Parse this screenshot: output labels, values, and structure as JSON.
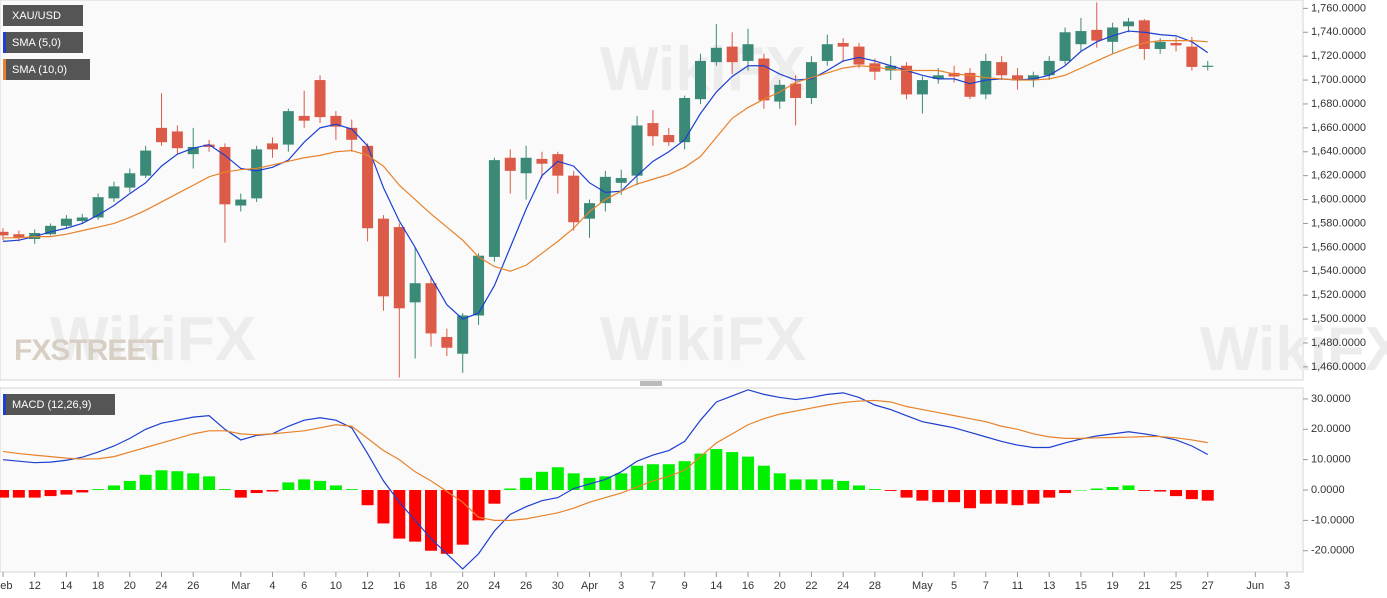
{
  "chart_data": [
    {
      "type": "candlestick",
      "ylim": [
        1449,
        1767
      ],
      "yticks": [
        {
          "value": 1460,
          "label": "1,460.0000"
        },
        {
          "value": 1480,
          "label": "1,480.0000"
        },
        {
          "value": 1500,
          "label": "1,500.0000"
        },
        {
          "value": 1520,
          "label": "1,520.0000"
        },
        {
          "value": 1540,
          "label": "1,540.0000"
        },
        {
          "value": 1560,
          "label": "1,560.0000"
        },
        {
          "value": 1580,
          "label": "1,580.0000"
        },
        {
          "value": 1600,
          "label": "1,600.0000"
        },
        {
          "value": 1620,
          "label": "1,620.0000"
        },
        {
          "value": 1640,
          "label": "1,640.0000"
        },
        {
          "value": 1660,
          "label": "1,660.0000"
        },
        {
          "value": 1680,
          "label": "1,680.0000"
        },
        {
          "value": 1700,
          "label": "1,700.0000"
        },
        {
          "value": 1720,
          "label": "1,720.0000"
        },
        {
          "value": 1740,
          "label": "1,740.0000"
        },
        {
          "value": 1760,
          "label": "1,760.0000"
        }
      ],
      "up_color": "#3b8a78",
      "down_color": "#dc5b48",
      "series": [
        {
          "name": "XAU/USD",
          "open": [
            1573,
            1571,
            1567,
            1571,
            1578,
            1582,
            1585,
            1601,
            1610,
            1620,
            1660,
            1657,
            1638,
            1646,
            1644,
            1595,
            1601,
            1647,
            1646,
            1670,
            1700,
            1670,
            1660,
            1645,
            1584,
            1577,
            1514,
            1530,
            1485,
            1471,
            1503,
            1552,
            1635,
            1622,
            1634,
            1638,
            1620,
            1584,
            1597,
            1614,
            1620,
            1664,
            1654,
            1648,
            1684,
            1715,
            1728,
            1716,
            1718,
            1682,
            1697,
            1685,
            1716,
            1731,
            1728,
            1714,
            1708,
            1712,
            1688,
            1701,
            1706,
            1706,
            1688,
            1715,
            1704,
            1700,
            1704,
            1716,
            1730,
            1742,
            1732,
            1745,
            1750,
            1726,
            1731,
            1728,
            1711,
            null,
            null,
            null,
            null,
            null
          ],
          "high": [
            1576,
            1574,
            1575,
            1580,
            1587,
            1588,
            1605,
            1615,
            1626,
            1645,
            1689,
            1662,
            1660,
            1650,
            1647,
            1605,
            1645,
            1652,
            1676,
            1691,
            1704,
            1674,
            1667,
            1647,
            1587,
            1580,
            1560,
            1536,
            1492,
            1505,
            1555,
            1635,
            1642,
            1645,
            1640,
            1640,
            1624,
            1600,
            1624,
            1625,
            1670,
            1675,
            1660,
            1687,
            1722,
            1747,
            1740,
            1743,
            1722,
            1700,
            1704,
            1720,
            1738,
            1735,
            1731,
            1718,
            1720,
            1715,
            1703,
            1710,
            1712,
            1710,
            1722,
            1720,
            1710,
            1707,
            1720,
            1744,
            1752,
            1765,
            1748,
            1752,
            1751,
            1735,
            1736,
            1736,
            1716,
            null,
            null,
            null,
            null,
            null
          ],
          "low": [
            1566,
            1565,
            1563,
            1570,
            1576,
            1580,
            1583,
            1598,
            1606,
            1618,
            1645,
            1638,
            1626,
            1640,
            1564,
            1590,
            1598,
            1635,
            1640,
            1660,
            1664,
            1650,
            1640,
            1565,
            1507,
            1451,
            1467,
            1477,
            1469,
            1455,
            1495,
            1548,
            1605,
            1600,
            1618,
            1605,
            1574,
            1568,
            1590,
            1604,
            1612,
            1645,
            1645,
            1642,
            1680,
            1712,
            1705,
            1708,
            1676,
            1676,
            1662,
            1680,
            1712,
            1715,
            1710,
            1700,
            1700,
            1684,
            1672,
            1697,
            1698,
            1684,
            1684,
            1700,
            1692,
            1694,
            1700,
            1713,
            1724,
            1727,
            1722,
            1740,
            1717,
            1722,
            1724,
            1708,
            1708,
            null,
            null,
            null,
            null,
            null
          ],
          "close": [
            1570,
            1568,
            1572,
            1578,
            1584,
            1585,
            1602,
            1611,
            1622,
            1641,
            1648,
            1643,
            1644,
            1644,
            1596,
            1600,
            1642,
            1642,
            1674,
            1666,
            1669,
            1661,
            1650,
            1576,
            1519,
            1509,
            1530,
            1488,
            1476,
            1503,
            1553,
            1633,
            1624,
            1635,
            1630,
            1620,
            1581,
            1597,
            1619,
            1618,
            1662,
            1653,
            1648,
            1685,
            1716,
            1727,
            1715,
            1730,
            1683,
            1696,
            1685,
            1715,
            1730,
            1728,
            1713,
            1707,
            1712,
            1688,
            1700,
            1704,
            1703,
            1686,
            1716,
            1704,
            1700,
            1704,
            1716,
            1740,
            1741,
            1733,
            1744,
            1749,
            1726,
            1732,
            1729,
            1711,
            1712,
            null,
            null,
            null,
            null,
            null
          ]
        },
        {
          "name": "SMA (5,0)",
          "color": "#1c3fd0",
          "values": [
            1565,
            1566,
            1569,
            1573,
            1576,
            1580,
            1587,
            1595,
            1605,
            1614,
            1628,
            1638,
            1643,
            1646,
            1637,
            1626,
            1624,
            1627,
            1633,
            1648,
            1660,
            1663,
            1659,
            1645,
            1610,
            1582,
            1560,
            1535,
            1512,
            1500,
            1505,
            1528,
            1560,
            1592,
            1620,
            1632,
            1628,
            1614,
            1606,
            1607,
            1620,
            1632,
            1640,
            1650,
            1672,
            1690,
            1703,
            1712,
            1712,
            1705,
            1700,
            1701,
            1708,
            1716,
            1719,
            1716,
            1712,
            1708,
            1704,
            1701,
            1701,
            1697,
            1700,
            1701,
            1700,
            1701,
            1704,
            1712,
            1724,
            1732,
            1737,
            1741,
            1740,
            1738,
            1737,
            1732,
            1723,
            null,
            null,
            null,
            null,
            null
          ]
        },
        {
          "name": "SMA (10,0)",
          "color": "#e8822a",
          "values": [
            1568,
            1568,
            1569,
            1569,
            1571,
            1574,
            1577,
            1580,
            1585,
            1591,
            1598,
            1605,
            1612,
            1619,
            1623,
            1625,
            1626,
            1629,
            1632,
            1635,
            1637,
            1640,
            1641,
            1637,
            1628,
            1612,
            1600,
            1588,
            1577,
            1566,
            1552,
            1544,
            1540,
            1545,
            1555,
            1565,
            1576,
            1590,
            1600,
            1607,
            1613,
            1617,
            1621,
            1627,
            1636,
            1652,
            1668,
            1677,
            1684,
            1690,
            1698,
            1702,
            1706,
            1710,
            1712,
            1711,
            1709,
            1708,
            1708,
            1708,
            1705,
            1704,
            1702,
            1701,
            1700,
            1700,
            1701,
            1704,
            1710,
            1716,
            1722,
            1727,
            1731,
            1733,
            1733,
            1733,
            1732,
            null,
            null,
            null,
            null,
            null
          ]
        }
      ]
    },
    {
      "type": "macd",
      "categories": [
        "Feb",
        null,
        "12",
        null,
        "14",
        null,
        "18",
        null,
        "20",
        null,
        "24",
        null,
        "26",
        null,
        null,
        "Mar",
        null,
        "4",
        null,
        "6",
        null,
        "10",
        null,
        "12",
        null,
        "16",
        null,
        "18",
        null,
        "20",
        null,
        "24",
        null,
        "26",
        null,
        "30",
        null,
        "Apr",
        null,
        "3",
        null,
        "7",
        null,
        "9",
        null,
        "14",
        null,
        "16",
        null,
        "20",
        null,
        "22",
        null,
        "24",
        null,
        "28",
        null,
        null,
        "May",
        null,
        "5",
        null,
        "7",
        null,
        "11",
        null,
        "13",
        null,
        "15",
        null,
        "19",
        null,
        "21",
        null,
        "25",
        null,
        "27",
        null,
        null,
        "Jun",
        null,
        "3"
      ],
      "ylim": [
        -27,
        33.6
      ],
      "yticks": [
        {
          "value": -20,
          "label": "-20.0000"
        },
        {
          "value": -10,
          "label": "-10.0000"
        },
        {
          "value": 0,
          "label": "0.0000"
        },
        {
          "value": 10,
          "label": "10.0000"
        },
        {
          "value": 20,
          "label": "20.0000"
        },
        {
          "value": 30,
          "label": "30.0000"
        }
      ],
      "series": [
        {
          "name": "MACD (12,26,9)",
          "color": "#1c3fd0",
          "values": [
            10,
            9.5,
            9,
            9.2,
            9.8,
            10.8,
            12.5,
            14.5,
            17,
            20,
            22,
            23,
            24,
            24.5,
            20,
            16.5,
            18,
            18.5,
            21,
            23,
            23.8,
            23,
            20.5,
            12,
            3,
            -4,
            -10,
            -16,
            -21,
            -26,
            -21,
            -13.5,
            -8,
            -5.5,
            -3.5,
            -2.5,
            0.5,
            2,
            3.5,
            6,
            9.5,
            11.5,
            13,
            16,
            23,
            29,
            31,
            33,
            31.5,
            30.5,
            29.8,
            30.5,
            31.5,
            32,
            30.5,
            28,
            26.5,
            24.5,
            22.5,
            21.5,
            20.5,
            19,
            17.5,
            16,
            14.8,
            14,
            14,
            15.5,
            16.8,
            17.8,
            18.5,
            19.2,
            18.5,
            17.6,
            16.5,
            14.5,
            11.7,
            null,
            null,
            null,
            null,
            null
          ]
        },
        {
          "color": "#e8822a",
          "values": [
            12.7,
            12,
            11.5,
            11,
            10.5,
            10.2,
            10.3,
            11,
            12.5,
            14,
            15.5,
            17,
            18.5,
            19.5,
            19.5,
            18.5,
            18.2,
            18.5,
            19,
            19.5,
            20.5,
            21.5,
            21,
            17,
            13,
            10,
            6,
            3,
            -0.5,
            -4,
            -9,
            -10,
            -10,
            -9.5,
            -8.5,
            -7.5,
            -6,
            -4,
            -2.5,
            -1,
            1,
            3,
            4.5,
            6.5,
            11,
            15.5,
            18.5,
            21.5,
            23.5,
            25,
            26,
            27,
            28,
            28.8,
            29.3,
            29.5,
            29,
            27.5,
            26.5,
            25.5,
            24.5,
            23.5,
            22.5,
            21,
            20,
            18.5,
            17.5,
            17,
            17,
            17.2,
            17.3,
            17.4,
            17.6,
            17.6,
            17.2,
            16.5,
            15.6,
            null,
            null,
            null,
            null,
            null
          ]
        },
        {
          "type": "histogram",
          "up_color": "#00f000",
          "down_color": "#ff0000",
          "values": [
            -2.5,
            -2.5,
            -2.5,
            -2,
            -1.5,
            -0.8,
            0.3,
            1.5,
            3,
            5,
            6.5,
            6.2,
            5.5,
            4.5,
            0.3,
            -2.5,
            -1,
            -0.5,
            2.5,
            3.5,
            3,
            1.5,
            0.3,
            -5,
            -11,
            -16,
            -17,
            -20,
            -21,
            -18,
            -10,
            -4.5,
            0.5,
            4,
            6,
            7.5,
            5.5,
            4,
            4.5,
            5.5,
            8,
            8.5,
            8.5,
            9.5,
            12,
            13.5,
            12.5,
            11,
            8,
            5.5,
            3.5,
            3.5,
            3.5,
            3,
            1.5,
            0.3,
            -0.3,
            -2.5,
            -3.5,
            -4,
            -4,
            -6,
            -4.5,
            -4.5,
            -5,
            -4.5,
            -2.5,
            -1,
            0,
            0.5,
            1,
            1.5,
            -0.3,
            -0.5,
            -2,
            -3,
            -3.5,
            null,
            null,
            null,
            null,
            null
          ]
        }
      ]
    }
  ],
  "watermark_brand": "FXSTREET",
  "watermarks": [
    "WikiFX",
    "WikiFX",
    "WikiFX",
    "WikiFX"
  ]
}
